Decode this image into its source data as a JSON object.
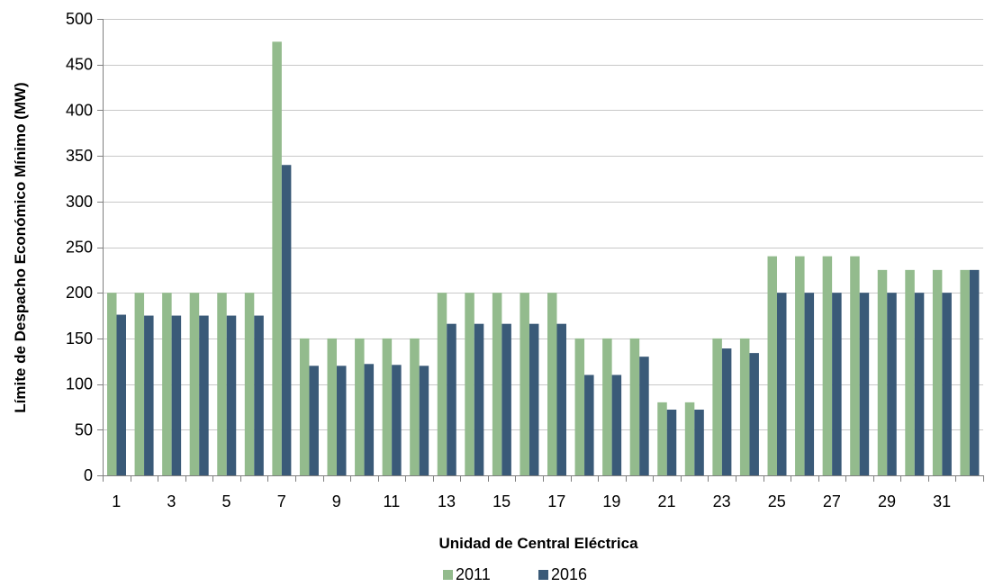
{
  "chart_data": {
    "type": "bar",
    "title": "",
    "xlabel": "Unidad de Central Eléctrica",
    "ylabel": "Límite de Despacho Económico Mínimo (MW)",
    "ylim": [
      0,
      500
    ],
    "yticks": [
      0,
      50,
      100,
      150,
      200,
      250,
      300,
      350,
      400,
      450,
      500
    ],
    "grid": true,
    "legend_position": "bottom",
    "categories": [
      "1",
      "2",
      "3",
      "4",
      "5",
      "6",
      "7",
      "8",
      "9",
      "10",
      "11",
      "12",
      "13",
      "14",
      "15",
      "16",
      "17",
      "18",
      "19",
      "20",
      "21",
      "22",
      "23",
      "24",
      "25",
      "26",
      "27",
      "28",
      "29",
      "30",
      "31",
      "32"
    ],
    "tick_labels": [
      "1",
      "",
      "3",
      "",
      "5",
      "",
      "7",
      "",
      "9",
      "",
      "11",
      "",
      "13",
      "",
      "15",
      "",
      "17",
      "",
      "19",
      "",
      "21",
      "",
      "23",
      "",
      "25",
      "",
      "27",
      "",
      "29",
      "",
      "31",
      ""
    ],
    "series": [
      {
        "name": "2011",
        "color": "#93bb8d",
        "values": [
          200,
          200,
          200,
          200,
          200,
          200,
          475,
          150,
          150,
          150,
          150,
          150,
          200,
          200,
          200,
          200,
          200,
          150,
          150,
          150,
          80,
          80,
          150,
          150,
          240,
          240,
          240,
          240,
          225,
          225,
          225,
          225
        ]
      },
      {
        "name": "2016",
        "color": "#3a5a78",
        "values": [
          176,
          175,
          175,
          175,
          175,
          175,
          340,
          120,
          120,
          122,
          121,
          120,
          166,
          166,
          166,
          166,
          166,
          110,
          110,
          130,
          72,
          72,
          139,
          134,
          200,
          200,
          200,
          200,
          200,
          200,
          200,
          225
        ]
      }
    ]
  }
}
